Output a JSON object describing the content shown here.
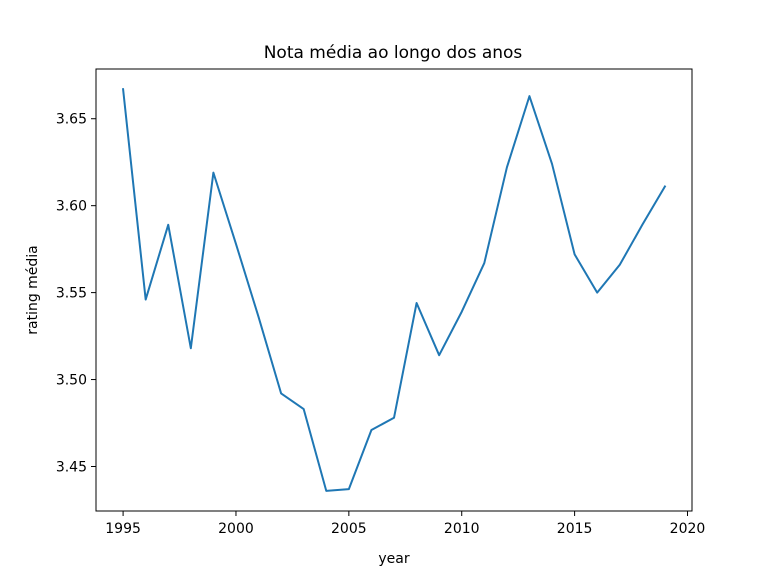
{
  "chart_data": {
    "type": "line",
    "title": "Nota média ao longo dos anos",
    "xlabel": "year",
    "ylabel": "rating média",
    "x": [
      1995,
      1996,
      1997,
      1998,
      1999,
      2000,
      2001,
      2002,
      2003,
      2004,
      2005,
      2006,
      2007,
      2008,
      2009,
      2010,
      2011,
      2012,
      2013,
      2014,
      2015,
      2016,
      2017,
      2018,
      2019
    ],
    "series": [
      {
        "color": "#1f77b4",
        "values": [
          3.667,
          3.546,
          3.589,
          3.518,
          3.619,
          3.578,
          3.536,
          3.492,
          3.483,
          3.436,
          3.437,
          3.471,
          3.478,
          3.544,
          3.514,
          3.539,
          3.567,
          3.622,
          3.663,
          3.624,
          3.572,
          3.55,
          3.566,
          3.589,
          3.611
        ]
      }
    ],
    "xlim": [
      1993.8,
      2020.2
    ],
    "ylim": [
      3.4244,
      3.6786
    ],
    "xticks": [
      1995,
      2000,
      2005,
      2010,
      2015,
      2020
    ],
    "xtick_labels": [
      "1995",
      "2000",
      "2005",
      "2010",
      "2015",
      "2020"
    ],
    "yticks": [
      3.45,
      3.5,
      3.55,
      3.6,
      3.65
    ],
    "ytick_labels": [
      "3.45",
      "3.50",
      "3.55",
      "3.60",
      "3.65"
    ],
    "grid": false,
    "legend": "none"
  }
}
